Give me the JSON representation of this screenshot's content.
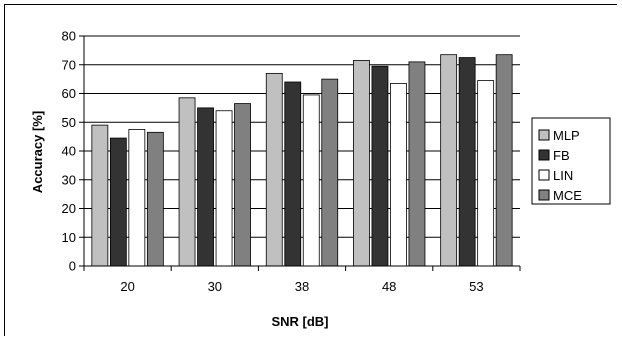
{
  "chart_data": {
    "type": "bar",
    "title": "",
    "xlabel": "SNR [dB]",
    "ylabel": "Accuracy [%]",
    "ylim": [
      0,
      80
    ],
    "yticks": [
      0,
      10,
      20,
      30,
      40,
      50,
      60,
      70,
      80
    ],
    "grid": true,
    "legend_position": "right",
    "categories": [
      "20",
      "30",
      "38",
      "48",
      "53"
    ],
    "series": [
      {
        "name": "MLP",
        "color": "#c0c0c0",
        "values": [
          49,
          58.5,
          67,
          71.5,
          73.5
        ]
      },
      {
        "name": "FB",
        "color": "#333333",
        "values": [
          44.5,
          55,
          64,
          69.5,
          72.5
        ]
      },
      {
        "name": "LIN",
        "color": "#ffffff",
        "values": [
          47.5,
          54,
          59.5,
          63.5,
          64.5
        ]
      },
      {
        "name": "MCE",
        "color": "#808080",
        "values": [
          46.5,
          56.5,
          65,
          71,
          73.5
        ]
      }
    ]
  }
}
